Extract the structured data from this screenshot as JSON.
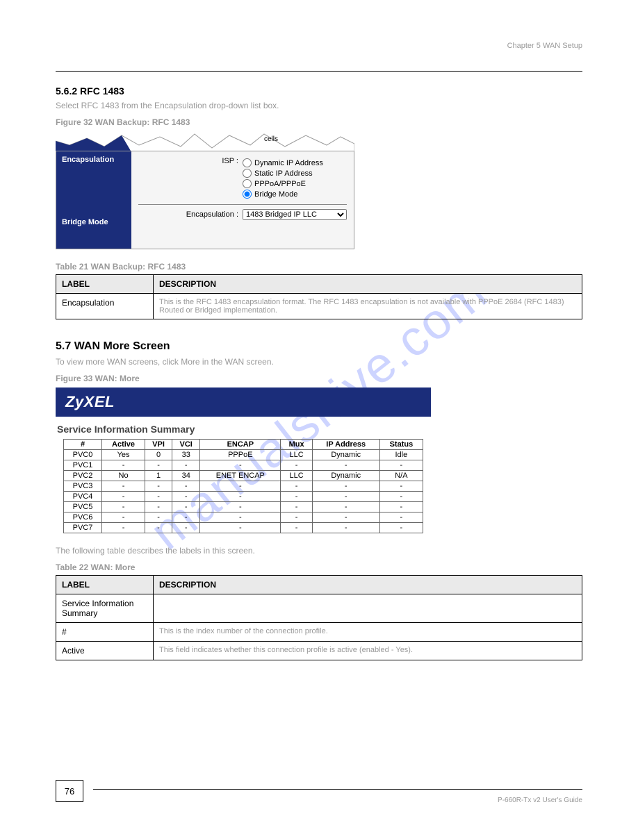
{
  "header": {
    "chapter": "Chapter 5 WAN Setup"
  },
  "section1": {
    "title": "5.6.2  RFC 1483",
    "text": "Select RFC 1483 from the Encapsulation drop-down list box.",
    "fig_label": "Figure 32   WAN Backup: RFC 1483"
  },
  "fig1": {
    "sidebar": {
      "top": "Encapsulation",
      "bottom": "Bridge Mode"
    },
    "isp_label": "ISP :",
    "options": [
      "Dynamic IP Address",
      "Static IP Address",
      "PPPoA/PPPoE",
      "Bridge Mode"
    ],
    "selected_index": 3,
    "encap_label": "Encapsulation :",
    "encap_value": "1483 Bridged IP LLC",
    "torn_label": "cells",
    "colors": {
      "sidebar_bg": "#1b2d7a",
      "sidebar_fg": "#ffffff",
      "body_bg": "#f5f5f5"
    }
  },
  "table1": {
    "caption": "Table 21   WAN Backup: RFC 1483",
    "headers": [
      "LABEL",
      "DESCRIPTION"
    ],
    "rows": [
      [
        "Encapsulation",
        "This is the RFC 1483 encapsulation format. The RFC 1483 encapsulation is not available with PPPoE 2684 (RFC 1483) Routed or Bridged implementation."
      ]
    ]
  },
  "section2": {
    "title": "5.7  WAN More Screen",
    "text": "To view more WAN screens, click More in the WAN screen.",
    "fig_label": "Figure 33   WAN: More"
  },
  "fig2": {
    "logo": "ZyXEL",
    "title": "Service Information Summary",
    "headers": [
      "#",
      "Active",
      "VPI",
      "VCI",
      "ENCAP",
      "Mux",
      "IP Address",
      "Status"
    ],
    "rows": [
      [
        "PVC0",
        "Yes",
        "0",
        "33",
        "PPPoE",
        "LLC",
        "Dynamic",
        "Idle"
      ],
      [
        "PVC1",
        "-",
        "-",
        "-",
        "-",
        "-",
        "-",
        "-"
      ],
      [
        "PVC2",
        "No",
        "1",
        "34",
        "ENET ENCAP",
        "LLC",
        "Dynamic",
        "N/A"
      ],
      [
        "PVC3",
        "-",
        "-",
        "-",
        "-",
        "-",
        "-",
        "-"
      ],
      [
        "PVC4",
        "-",
        "-",
        "-",
        "-",
        "-",
        "-",
        "-"
      ],
      [
        "PVC5",
        "-",
        "-",
        "-",
        "-",
        "-",
        "-",
        "-"
      ],
      [
        "PVC6",
        "-",
        "-",
        "-",
        "-",
        "-",
        "-",
        "-"
      ],
      [
        "PVC7",
        "-",
        "-",
        "-",
        "-",
        "-",
        "-",
        "-"
      ]
    ],
    "colors": {
      "bar_bg": "#1b2d7a",
      "bar_fg": "#ffffff"
    }
  },
  "table2": {
    "intro": "The following table describes the labels in this screen.",
    "caption": "Table 22   WAN: More",
    "headers": [
      "LABEL",
      "DESCRIPTION"
    ],
    "rows": [
      [
        "Service Information Summary",
        ""
      ],
      [
        "#",
        "This is the index number of the connection profile."
      ],
      [
        "Active",
        "This field indicates whether this connection profile is active (enabled - Yes)."
      ]
    ]
  },
  "footer": {
    "page_num": "76",
    "text": "P-660R-Tx v2 User's Guide"
  },
  "watermark": "manualshive.com"
}
